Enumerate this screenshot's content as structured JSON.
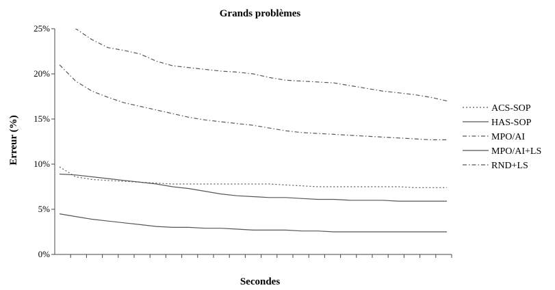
{
  "chart_data": {
    "type": "line",
    "title": "Grands problèmes",
    "xlabel": "Secondes",
    "ylabel": "Erreur (%)",
    "ylim": [
      0,
      25
    ],
    "y_ticks": [
      "0%",
      "5%",
      "10%",
      "15%",
      "20%",
      "25%"
    ],
    "x_tick_count": 25,
    "x": [
      0,
      1,
      2,
      3,
      4,
      5,
      6,
      7,
      8,
      9,
      10,
      11,
      12,
      13,
      14,
      15,
      16,
      17,
      18,
      19,
      20,
      21,
      22,
      23,
      24
    ],
    "grid": false,
    "legend": "right",
    "series": [
      {
        "name": "ACS-SOP",
        "style": "dotted",
        "values": [
          9.7,
          8.6,
          8.3,
          8.2,
          8.1,
          8.0,
          7.9,
          7.8,
          7.8,
          7.8,
          7.8,
          7.8,
          7.8,
          7.8,
          7.7,
          7.6,
          7.5,
          7.5,
          7.5,
          7.5,
          7.5,
          7.5,
          7.4,
          7.4,
          7.4
        ]
      },
      {
        "name": "HAS-SOP",
        "style": "solid",
        "values": [
          4.5,
          4.2,
          3.9,
          3.7,
          3.5,
          3.3,
          3.1,
          3.0,
          3.0,
          2.9,
          2.9,
          2.8,
          2.7,
          2.7,
          2.7,
          2.6,
          2.6,
          2.5,
          2.5,
          2.5,
          2.5,
          2.5,
          2.5,
          2.5,
          2.5
        ]
      },
      {
        "name": "MPO/AI",
        "style": "dashdot",
        "values": [
          21.0,
          19.2,
          18.1,
          17.4,
          16.8,
          16.4,
          16.0,
          15.6,
          15.2,
          14.9,
          14.7,
          14.5,
          14.3,
          14.0,
          13.7,
          13.5,
          13.4,
          13.3,
          13.2,
          13.1,
          13.0,
          12.9,
          12.8,
          12.7,
          12.7
        ]
      },
      {
        "name": "MPO/AI+LS",
        "style": "solid",
        "values": [
          8.9,
          8.8,
          8.6,
          8.4,
          8.2,
          8.0,
          7.8,
          7.5,
          7.3,
          7.0,
          6.7,
          6.5,
          6.4,
          6.3,
          6.3,
          6.2,
          6.1,
          6.1,
          6.0,
          6.0,
          6.0,
          5.9,
          5.9,
          5.9,
          5.9
        ]
      },
      {
        "name": "RND+LS",
        "style": "dashdot",
        "values": [
          26.2,
          25.0,
          23.8,
          22.9,
          22.6,
          22.2,
          21.4,
          20.9,
          20.7,
          20.5,
          20.3,
          20.2,
          20.0,
          19.6,
          19.3,
          19.2,
          19.1,
          19.0,
          18.7,
          18.4,
          18.1,
          17.9,
          17.7,
          17.4,
          17.0
        ]
      }
    ]
  }
}
